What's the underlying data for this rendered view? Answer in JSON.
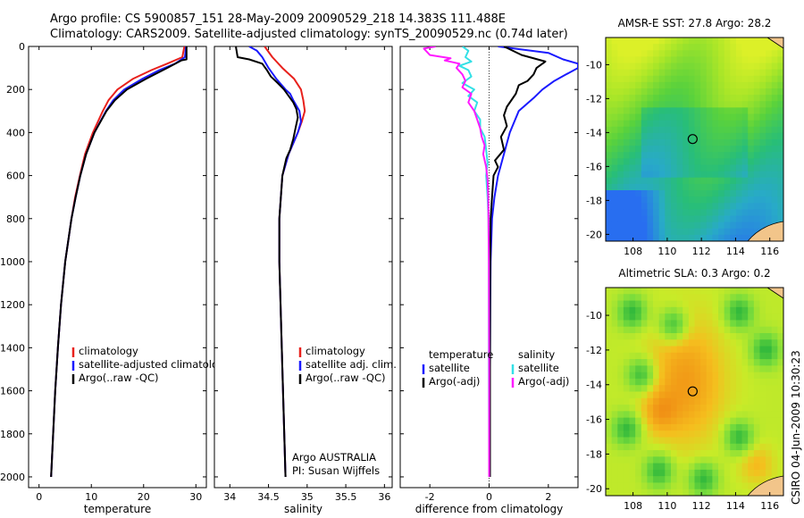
{
  "header": {
    "line1": "Argo profile: CS 5900857_151 28-May-2009 20090529_218 14.383S 111.488E",
    "line2": "Climatology: CARS2009. Satellite-adjusted climatology: synTS_20090529.nc (0.74d later)"
  },
  "footer_stamp": "CSIRO 04-Jun-2009 10:30:23",
  "colors": {
    "climatology": "#e8211c",
    "satellite": "#1a1aff",
    "argo": "#000000",
    "salinity_satellite": "#33e0e6",
    "salinity_argo": "#ff1aff"
  },
  "chart_data": [
    {
      "type": "line",
      "id": "temperature",
      "xlabel": "temperature",
      "ylabel": "",
      "xlim": [
        -2,
        32
      ],
      "ylim": [
        2050,
        0
      ],
      "xticks": [
        0,
        10,
        20,
        30
      ],
      "yticks": [
        0,
        200,
        400,
        600,
        800,
        1000,
        1200,
        1400,
        1600,
        1800,
        2000
      ],
      "legend": [
        "climatology",
        "satellite-adjusted climatology",
        "Argo(..raw -QC)"
      ],
      "series": [
        {
          "name": "climatology",
          "color_key": "climatology",
          "depth": [
            0,
            50,
            80,
            110,
            150,
            200,
            250,
            300,
            400,
            500,
            600,
            700,
            800,
            1000,
            1200,
            1400,
            1600,
            1800,
            2000
          ],
          "values": [
            27.8,
            27.4,
            24.5,
            21.5,
            18.0,
            15.0,
            13.3,
            12.2,
            10.3,
            8.8,
            7.8,
            6.9,
            6.2,
            5.0,
            4.2,
            3.6,
            3.1,
            2.7,
            2.3
          ]
        },
        {
          "name": "satellite-adjusted climatology",
          "color_key": "satellite",
          "depth": [
            0,
            50,
            80,
            110,
            150,
            200,
            250,
            300,
            400,
            500,
            600,
            700,
            800,
            1000,
            1200,
            1400,
            1600,
            1800,
            2000
          ],
          "values": [
            28.1,
            27.9,
            26.0,
            23.0,
            19.8,
            16.3,
            14.2,
            12.8,
            10.6,
            9.0,
            7.9,
            7.0,
            6.2,
            5.0,
            4.2,
            3.6,
            3.1,
            2.7,
            2.3
          ]
        },
        {
          "name": "Argo(..raw -QC)",
          "color_key": "argo",
          "depth": [
            0,
            60,
            65,
            100,
            150,
            200,
            250,
            300,
            400,
            500,
            600,
            700,
            800,
            1000,
            1200,
            1400,
            1600,
            1800,
            2000
          ],
          "values": [
            28.2,
            28.2,
            27.2,
            24.5,
            20.5,
            16.8,
            14.5,
            12.9,
            10.6,
            9.0,
            7.9,
            7.0,
            6.2,
            5.0,
            4.2,
            3.6,
            3.1,
            2.7,
            2.3
          ]
        }
      ],
      "annotations": []
    },
    {
      "type": "line",
      "id": "salinity",
      "xlabel": "salinity",
      "ylabel": "",
      "xlim": [
        33.8,
        36.1
      ],
      "ylim": [
        2050,
        0
      ],
      "xticks": [
        34,
        34.5,
        35,
        35.5,
        36
      ],
      "yticks": [
        0,
        200,
        400,
        600,
        800,
        1000,
        1200,
        1400,
        1600,
        1800,
        2000
      ],
      "legend": [
        "climatology",
        "satellite adj. clim.",
        "Argo(..raw -QC)"
      ],
      "series": [
        {
          "name": "climatology",
          "color_key": "climatology",
          "depth": [
            0,
            50,
            100,
            150,
            200,
            250,
            300,
            350,
            400,
            450,
            500,
            600,
            800,
            1000,
            1500,
            2000
          ],
          "values": [
            34.45,
            34.55,
            34.68,
            34.83,
            34.92,
            34.95,
            34.97,
            34.93,
            34.88,
            34.82,
            34.76,
            34.68,
            34.64,
            34.64,
            34.68,
            34.72
          ]
        },
        {
          "name": "satellite adj. clim.",
          "color_key": "satellite",
          "depth": [
            0,
            20,
            50,
            100,
            150,
            200,
            220,
            250,
            300,
            350,
            400,
            450,
            500,
            600,
            800,
            1000,
            1500,
            2000
          ],
          "values": [
            34.25,
            34.35,
            34.42,
            34.5,
            34.6,
            34.72,
            34.78,
            34.82,
            34.9,
            34.92,
            34.88,
            34.82,
            34.76,
            34.68,
            34.64,
            34.64,
            34.68,
            34.72
          ]
        },
        {
          "name": "Argo(..raw -QC)",
          "color_key": "argo",
          "depth": [
            0,
            5,
            50,
            60,
            80,
            110,
            140,
            170,
            200,
            230,
            260,
            290,
            330,
            380,
            430,
            480,
            520,
            600,
            800,
            1000,
            1500,
            2000
          ],
          "values": [
            34.08,
            34.08,
            34.1,
            34.25,
            34.42,
            34.48,
            34.53,
            34.62,
            34.7,
            34.76,
            34.82,
            34.86,
            34.88,
            34.85,
            34.82,
            34.78,
            34.73,
            34.68,
            34.64,
            34.64,
            34.68,
            34.72
          ]
        }
      ],
      "annotations": [
        "Argo AUSTRALIA",
        "PI: Susan Wijffels"
      ]
    },
    {
      "type": "line",
      "id": "difference",
      "xlabel": "difference from climatology",
      "ylabel": "",
      "xlim": [
        -3,
        3
      ],
      "ylim": [
        2050,
        0
      ],
      "xticks": [
        -2,
        0,
        2
      ],
      "yticks": [
        0,
        200,
        400,
        600,
        800,
        1000,
        1200,
        1400,
        1600,
        1800,
        2000
      ],
      "zero_line": true,
      "legend_groups": [
        {
          "heading": "temperature",
          "items": [
            "satellite",
            "Argo(-adj)"
          ]
        },
        {
          "heading": "salinity",
          "items": [
            "satellite",
            "Argo(-adj)"
          ]
        }
      ],
      "series": [
        {
          "name": "temperature satellite",
          "color_key": "satellite",
          "depth": [
            0,
            30,
            60,
            80,
            100,
            130,
            160,
            200,
            240,
            300,
            400,
            500,
            600,
            700,
            800,
            1000,
            1200,
            1500,
            2000
          ],
          "values": [
            0.3,
            2.0,
            2.5,
            3.0,
            3.0,
            2.6,
            2.2,
            1.8,
            1.5,
            1.0,
            0.7,
            0.5,
            0.3,
            0.18,
            0.1,
            0.05,
            0.04,
            0.03,
            0.03
          ]
        },
        {
          "name": "temperature Argo(-adj)",
          "color_key": "argo",
          "depth": [
            0,
            40,
            70,
            100,
            130,
            160,
            180,
            220,
            280,
            320,
            370,
            420,
            480,
            530,
            560,
            600,
            700,
            800,
            1000,
            1500,
            2000
          ],
          "values": [
            0.5,
            1.1,
            1.9,
            1.6,
            1.5,
            1.3,
            1.0,
            0.9,
            0.6,
            0.5,
            0.6,
            0.4,
            0.5,
            0.2,
            0.3,
            0.15,
            0.1,
            0.05,
            0.04,
            0.03,
            0.03
          ]
        },
        {
          "name": "salinity satellite",
          "color_key": "salinity_satellite",
          "depth": [
            0,
            20,
            50,
            70,
            90,
            110,
            140,
            170,
            200,
            230,
            260,
            300,
            340,
            380,
            420,
            480,
            540,
            600,
            700,
            800,
            1000,
            1500,
            2000
          ],
          "values": [
            -0.9,
            -0.7,
            -0.8,
            -0.6,
            -1.0,
            -0.7,
            -0.6,
            -0.9,
            -0.5,
            -0.7,
            -0.4,
            -0.5,
            -0.3,
            -0.3,
            -0.15,
            -0.1,
            -0.05,
            -0.1,
            -0.05,
            -0.02,
            -0.01,
            -0.01,
            0.0
          ]
        },
        {
          "name": "salinity Argo(-adj)",
          "color_key": "salinity_argo",
          "depth": [
            0,
            10,
            40,
            55,
            65,
            80,
            100,
            130,
            160,
            190,
            220,
            260,
            300,
            340,
            380,
            420,
            460,
            500,
            560,
            620,
            700,
            800,
            1000,
            1500,
            2000
          ],
          "values": [
            -1.8,
            -2.2,
            -2.0,
            -1.3,
            -1.5,
            -1.0,
            -1.1,
            -0.9,
            -0.8,
            -0.9,
            -0.6,
            -0.7,
            -0.5,
            -0.4,
            -0.3,
            -0.25,
            -0.15,
            -0.2,
            -0.1,
            -0.05,
            -0.03,
            -0.02,
            -0.01,
            0.0,
            0.0
          ]
        }
      ],
      "annotations": []
    }
  ],
  "maps": [
    {
      "id": "sst",
      "title": "AMSR-E SST: 27.8 Argo: 28.2",
      "type": "heatmap",
      "xlim": [
        106.4,
        116.8
      ],
      "ylim": [
        -20.4,
        -8.4
      ],
      "xticks": [
        108,
        110,
        112,
        114,
        116
      ],
      "yticks": [
        -10,
        -12,
        -14,
        -16,
        -18,
        -20
      ],
      "marker": {
        "lon": 111.488,
        "lat": -14.383
      },
      "palette": "sst"
    },
    {
      "id": "sla",
      "title": "Altimetric SLA: 0.3 Argo: 0.2",
      "type": "heatmap",
      "xlim": [
        106.4,
        116.8
      ],
      "ylim": [
        -20.4,
        -8.4
      ],
      "xticks": [
        108,
        110,
        112,
        114,
        116
      ],
      "yticks": [
        -10,
        -12,
        -14,
        -16,
        -18,
        -20
      ],
      "marker": {
        "lon": 111.488,
        "lat": -14.383
      },
      "palette": "sla"
    }
  ]
}
